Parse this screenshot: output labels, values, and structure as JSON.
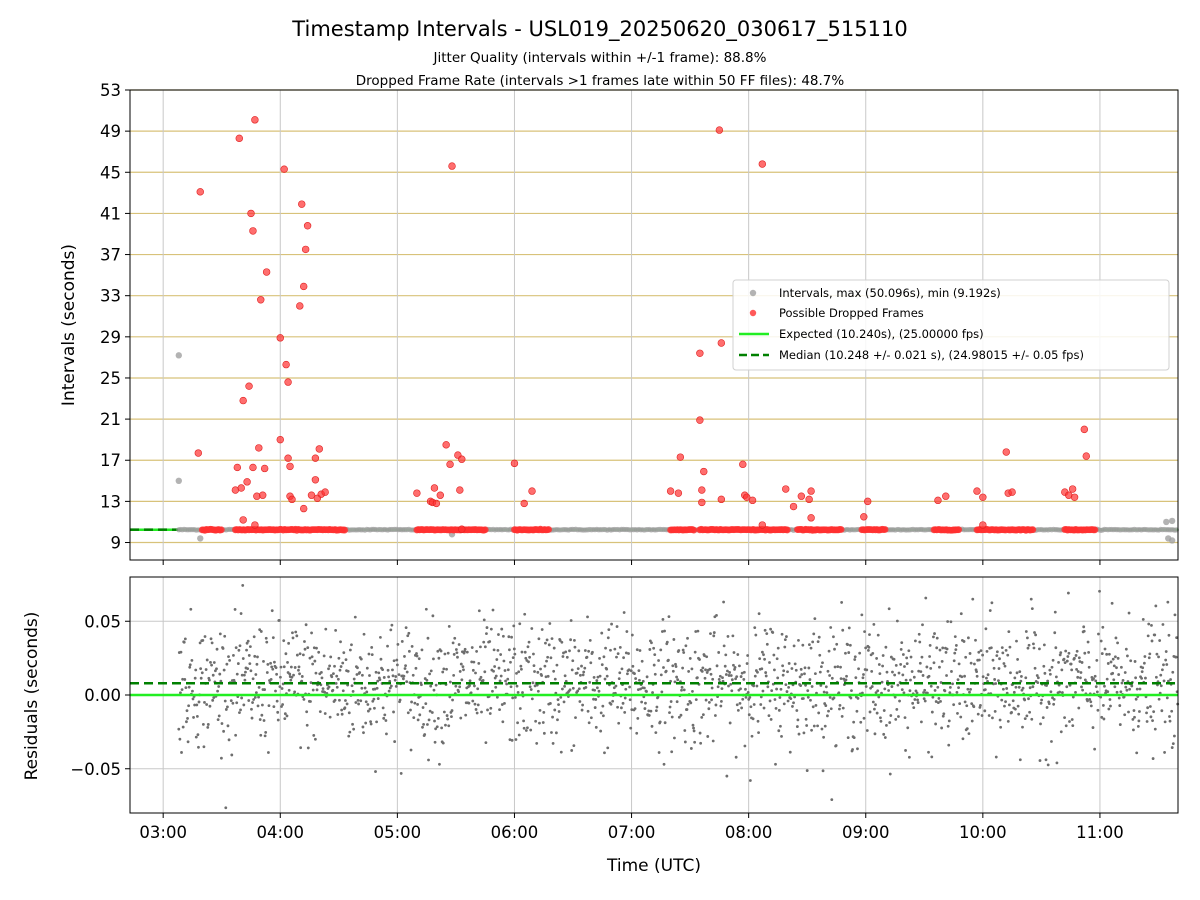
{
  "title": "Timestamp Intervals - USL019_20250620_030617_515110",
  "subtitle_lines": [
    "Jitter Quality (intervals within +/-1 frame): 88.8%",
    "Dropped Frame Rate (intervals >1 frames late within 50 FF files): 48.7%"
  ],
  "colors": {
    "interval": "#a0a0a0",
    "dropped": "#ff3030",
    "expected": "#22ee22",
    "median": "#008000",
    "residual": "#6e6e6e",
    "hgrid_top": "#d8c27a",
    "grid": "#c8c8c8"
  },
  "chart_data": [
    {
      "type": "scatter",
      "ylabel": "Intervals (seconds)",
      "xlim": [
        "02:43",
        "11:40"
      ],
      "ylim": [
        7.3,
        53
      ],
      "yticks": [
        9,
        13,
        17,
        21,
        25,
        29,
        33,
        37,
        41,
        45,
        49,
        53
      ],
      "grid": true,
      "legend_position": "center-right",
      "legend": [
        "Intervals, max (50.096s), min (9.192s)",
        "Possible Dropped Frames",
        "Expected (10.240s), (25.00000 fps)",
        "Median (10.248 +/- 0.021 s), (24.98015 +/- 0.05 fps)"
      ],
      "expected_y": 10.24,
      "median_y": 10.248,
      "intervals_outliers": [
        {
          "t": "03:08",
          "y": 27.2
        },
        {
          "t": "03:08",
          "y": 15.0
        },
        {
          "t": "03:19",
          "y": 9.4
        },
        {
          "t": "05:28",
          "y": 9.8
        },
        {
          "t": "08:03",
          "y": 10.2
        },
        {
          "t": "11:34",
          "y": 11.0
        },
        {
          "t": "11:37",
          "y": 11.1
        },
        {
          "t": "11:35",
          "y": 9.4
        },
        {
          "t": "11:37",
          "y": 9.2
        }
      ],
      "dropped_frames": [
        {
          "t": "03:19",
          "y": 43.1
        },
        {
          "t": "03:18",
          "y": 17.7
        },
        {
          "t": "03:39",
          "y": 48.3
        },
        {
          "t": "03:47",
          "y": 50.1
        },
        {
          "t": "03:37",
          "y": 14.1
        },
        {
          "t": "03:38",
          "y": 16.3
        },
        {
          "t": "03:40",
          "y": 14.3
        },
        {
          "t": "03:41",
          "y": 22.8
        },
        {
          "t": "03:43",
          "y": 14.9
        },
        {
          "t": "03:41",
          "y": 11.2
        },
        {
          "t": "03:44",
          "y": 24.2
        },
        {
          "t": "03:45",
          "y": 41.0
        },
        {
          "t": "03:46",
          "y": 39.3
        },
        {
          "t": "03:46",
          "y": 16.3
        },
        {
          "t": "03:47",
          "y": 10.7
        },
        {
          "t": "03:48",
          "y": 13.5
        },
        {
          "t": "03:49",
          "y": 18.2
        },
        {
          "t": "03:50",
          "y": 32.6
        },
        {
          "t": "03:51",
          "y": 13.6
        },
        {
          "t": "03:52",
          "y": 16.2
        },
        {
          "t": "03:53",
          "y": 35.3
        },
        {
          "t": "04:00",
          "y": 28.9
        },
        {
          "t": "04:00",
          "y": 19.0
        },
        {
          "t": "04:02",
          "y": 45.3
        },
        {
          "t": "04:03",
          "y": 26.3
        },
        {
          "t": "04:04",
          "y": 24.6
        },
        {
          "t": "04:04",
          "y": 17.2
        },
        {
          "t": "04:05",
          "y": 13.5
        },
        {
          "t": "04:05",
          "y": 16.4
        },
        {
          "t": "04:06",
          "y": 13.2
        },
        {
          "t": "04:10",
          "y": 32.0
        },
        {
          "t": "04:11",
          "y": 41.9
        },
        {
          "t": "04:12",
          "y": 33.9
        },
        {
          "t": "04:12",
          "y": 12.3
        },
        {
          "t": "04:13",
          "y": 37.5
        },
        {
          "t": "04:14",
          "y": 39.8
        },
        {
          "t": "04:16",
          "y": 13.6
        },
        {
          "t": "04:18",
          "y": 17.2
        },
        {
          "t": "04:18",
          "y": 15.1
        },
        {
          "t": "04:19",
          "y": 13.3
        },
        {
          "t": "04:20",
          "y": 18.1
        },
        {
          "t": "04:21",
          "y": 13.7
        },
        {
          "t": "04:23",
          "y": 13.9
        },
        {
          "t": "05:10",
          "y": 13.8
        },
        {
          "t": "05:17",
          "y": 13.0
        },
        {
          "t": "05:18",
          "y": 12.9
        },
        {
          "t": "05:19",
          "y": 14.3
        },
        {
          "t": "05:20",
          "y": 12.8
        },
        {
          "t": "05:22",
          "y": 13.6
        },
        {
          "t": "05:25",
          "y": 18.5
        },
        {
          "t": "05:27",
          "y": 16.6
        },
        {
          "t": "05:28",
          "y": 45.6
        },
        {
          "t": "05:31",
          "y": 17.5
        },
        {
          "t": "05:32",
          "y": 14.1
        },
        {
          "t": "05:33",
          "y": 17.1
        },
        {
          "t": "05:33",
          "y": 10.3
        },
        {
          "t": "06:00",
          "y": 16.7
        },
        {
          "t": "06:05",
          "y": 12.8
        },
        {
          "t": "06:09",
          "y": 14.0
        },
        {
          "t": "07:20",
          "y": 14.0
        },
        {
          "t": "07:24",
          "y": 13.8
        },
        {
          "t": "07:35",
          "y": 27.4
        },
        {
          "t": "07:35",
          "y": 20.9
        },
        {
          "t": "07:36",
          "y": 12.9
        },
        {
          "t": "07:36",
          "y": 14.1
        },
        {
          "t": "07:37",
          "y": 15.9
        },
        {
          "t": "07:25",
          "y": 17.3
        },
        {
          "t": "07:46",
          "y": 28.4
        },
        {
          "t": "07:45",
          "y": 49.1
        },
        {
          "t": "07:46",
          "y": 13.2
        },
        {
          "t": "07:57",
          "y": 16.6
        },
        {
          "t": "07:58",
          "y": 13.6
        },
        {
          "t": "07:59",
          "y": 13.4
        },
        {
          "t": "08:02",
          "y": 13.1
        },
        {
          "t": "08:07",
          "y": 45.8
        },
        {
          "t": "08:07",
          "y": 10.7
        },
        {
          "t": "08:19",
          "y": 14.2
        },
        {
          "t": "08:23",
          "y": 12.5
        },
        {
          "t": "08:27",
          "y": 13.5
        },
        {
          "t": "08:31",
          "y": 13.2
        },
        {
          "t": "08:32",
          "y": 14.0
        },
        {
          "t": "08:32",
          "y": 11.4
        },
        {
          "t": "08:59",
          "y": 11.5
        },
        {
          "t": "09:01",
          "y": 13.0
        },
        {
          "t": "09:37",
          "y": 13.1
        },
        {
          "t": "09:41",
          "y": 13.5
        },
        {
          "t": "09:57",
          "y": 14.0
        },
        {
          "t": "10:00",
          "y": 13.4
        },
        {
          "t": "10:00",
          "y": 10.7
        },
        {
          "t": "10:12",
          "y": 17.8
        },
        {
          "t": "10:13",
          "y": 13.8
        },
        {
          "t": "10:15",
          "y": 13.9
        },
        {
          "t": "10:42",
          "y": 13.9
        },
        {
          "t": "10:44",
          "y": 13.6
        },
        {
          "t": "10:46",
          "y": 14.2
        },
        {
          "t": "10:47",
          "y": 13.4
        },
        {
          "t": "10:52",
          "y": 20.0
        },
        {
          "t": "10:53",
          "y": 17.4
        }
      ],
      "dropped_baseline_runs": [
        [
          "03:20",
          "03:30"
        ],
        [
          "03:37",
          "04:33"
        ],
        [
          "05:10",
          "05:45"
        ],
        [
          "06:00",
          "06:18"
        ],
        [
          "07:20",
          "07:32"
        ],
        [
          "07:35",
          "08:20"
        ],
        [
          "08:25",
          "08:48"
        ],
        [
          "08:58",
          "09:10"
        ],
        [
          "09:35",
          "09:48"
        ],
        [
          "09:57",
          "10:12"
        ],
        [
          "10:13",
          "10:26"
        ],
        [
          "10:42",
          "10:58"
        ]
      ]
    },
    {
      "type": "scatter",
      "xlabel": "Time (UTC)",
      "ylabel": "Residuals (seconds)",
      "xlim": [
        "02:43",
        "11:40"
      ],
      "ylim": [
        -0.08,
        0.08
      ],
      "yticks": [
        -0.05,
        0.0,
        0.05
      ],
      "ytick_labels": [
        "−0.05",
        "0.00",
        "0.05"
      ],
      "xticks": [
        "03:00",
        "04:00",
        "05:00",
        "06:00",
        "07:00",
        "08:00",
        "09:00",
        "10:00",
        "11:00"
      ],
      "expected_residual": 0.0,
      "median_residual": 0.008,
      "residual_range": [
        "03:08",
        "11:40"
      ],
      "residual_spread": 0.021,
      "grid": true
    }
  ]
}
